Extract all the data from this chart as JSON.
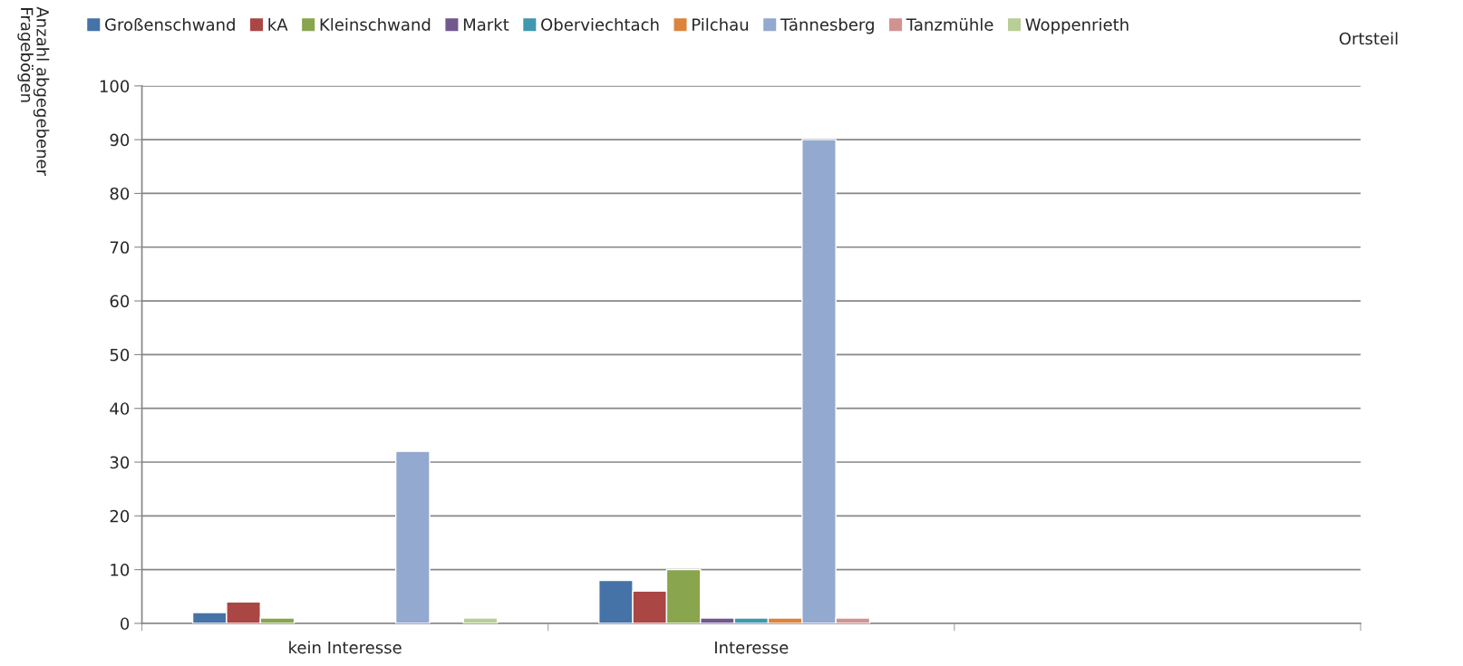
{
  "chart_data": {
    "type": "bar",
    "ylabel": "Anzahl abgegebener\nFragebögen",
    "legend_title": "Ortsteil",
    "categories": [
      "kein Interesse",
      "Interesse",
      null
    ],
    "series": [
      {
        "name": "Großenschwand",
        "color": "#4572a7",
        "values": [
          2,
          8,
          null
        ]
      },
      {
        "name": "kA",
        "color": "#aa4643",
        "values": [
          4,
          6,
          null
        ]
      },
      {
        "name": "Kleinschwand",
        "color": "#89a54e",
        "values": [
          1,
          10,
          null
        ]
      },
      {
        "name": "Markt",
        "color": "#71588f",
        "values": [
          null,
          1,
          null
        ]
      },
      {
        "name": "Oberviechtach",
        "color": "#4198af",
        "values": [
          null,
          1,
          null
        ]
      },
      {
        "name": "Pilchau",
        "color": "#db843d",
        "values": [
          null,
          1,
          null
        ]
      },
      {
        "name": "Tännesberg",
        "color": "#93a9cf",
        "values": [
          32,
          90,
          null
        ]
      },
      {
        "name": "Tanzmühle",
        "color": "#d19392",
        "values": [
          null,
          1,
          null
        ]
      },
      {
        "name": "Woppenrieth",
        "color": "#b9cd96",
        "values": [
          1,
          null,
          null
        ]
      }
    ],
    "ylim": [
      0,
      100
    ],
    "yticks": [
      0,
      10,
      20,
      30,
      40,
      50,
      60,
      70,
      80,
      90,
      100
    ],
    "grid": "y",
    "legend": "top"
  }
}
